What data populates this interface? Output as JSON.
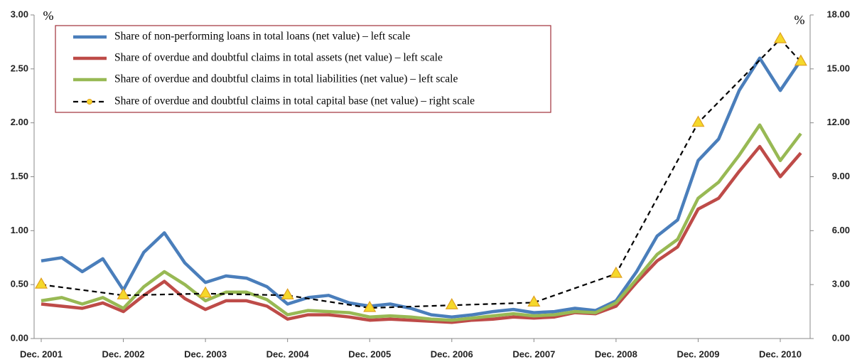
{
  "chart_data": {
    "type": "line",
    "y_label": "%",
    "y2_label": "%",
    "categories": [
      "Dec. 2001",
      null,
      null,
      null,
      "Dec. 2002",
      null,
      null,
      null,
      "Dec. 2003",
      null,
      null,
      null,
      "Dec. 2004",
      null,
      null,
      null,
      "Dec. 2005",
      null,
      null,
      null,
      "Dec. 2006",
      null,
      null,
      null,
      "Dec. 2007",
      null,
      null,
      null,
      "Dec. 2008",
      null,
      null,
      null,
      "Dec. 2009",
      null,
      null,
      null,
      "Dec. 2010",
      null
    ],
    "ylim": [
      0,
      3
    ],
    "yticks": [
      {
        "value": 0,
        "label": "0.00"
      },
      {
        "value": 0.5,
        "label": "0.50"
      },
      {
        "value": 1,
        "label": "1.00"
      },
      {
        "value": 1.5,
        "label": "1.50"
      },
      {
        "value": 2,
        "label": "2.00"
      },
      {
        "value": 2.5,
        "label": "2.50"
      },
      {
        "value": 3,
        "label": "3.00"
      }
    ],
    "y2lim": [
      0,
      18
    ],
    "y2ticks": [
      {
        "value": 0,
        "label": "0.00"
      },
      {
        "value": 3,
        "label": "3.00"
      },
      {
        "value": 6,
        "label": "6.00"
      },
      {
        "value": 9,
        "label": "9.00"
      },
      {
        "value": 12,
        "label": "12.00"
      },
      {
        "value": 15,
        "label": "15.00"
      },
      {
        "value": 18,
        "label": "18.00"
      }
    ],
    "series": [
      {
        "name": "Share of non-performing loans in total loans (net value) – left scale",
        "color": "#4a7ebb",
        "values": [
          0.72,
          0.75,
          0.62,
          0.74,
          0.45,
          0.8,
          0.98,
          0.7,
          0.52,
          0.58,
          0.56,
          0.48,
          0.32,
          0.38,
          0.4,
          0.33,
          0.3,
          0.32,
          0.28,
          0.22,
          0.2,
          0.22,
          0.25,
          0.27,
          0.24,
          0.25,
          0.28,
          0.26,
          0.35,
          0.62,
          0.95,
          1.1,
          1.65,
          1.85,
          2.3,
          2.6,
          2.3,
          2.58
        ]
      },
      {
        "name": "Share of overdue and doubtful claims in total assets (net value) – left scale",
        "color": "#be4b48",
        "values": [
          0.32,
          0.3,
          0.28,
          0.33,
          0.25,
          0.4,
          0.53,
          0.37,
          0.27,
          0.35,
          0.35,
          0.3,
          0.18,
          0.22,
          0.22,
          0.2,
          0.17,
          0.18,
          0.17,
          0.16,
          0.15,
          0.17,
          0.18,
          0.2,
          0.19,
          0.2,
          0.24,
          0.23,
          0.3,
          0.52,
          0.72,
          0.85,
          1.2,
          1.3,
          1.55,
          1.78,
          1.5,
          1.72
        ]
      },
      {
        "name": "Share of overdue and doubtful claims in total liabilities (net value) – left scale",
        "color": "#98b954",
        "values": [
          0.35,
          0.38,
          0.32,
          0.38,
          0.28,
          0.48,
          0.62,
          0.5,
          0.35,
          0.43,
          0.43,
          0.36,
          0.22,
          0.26,
          0.25,
          0.24,
          0.2,
          0.21,
          0.2,
          0.18,
          0.17,
          0.19,
          0.21,
          0.23,
          0.21,
          0.22,
          0.25,
          0.24,
          0.33,
          0.55,
          0.78,
          0.92,
          1.3,
          1.45,
          1.7,
          1.98,
          1.65,
          1.9
        ]
      },
      {
        "name": "Share of overdue and doubtful claims in total capital base (net value) – right scale",
        "color": "#000000",
        "axis": "y2",
        "dashed": true,
        "span_gaps": true,
        "marker_color": "#f5d82a",
        "values": [
          3.0,
          null,
          null,
          null,
          2.4,
          null,
          null,
          null,
          2.5,
          null,
          null,
          null,
          2.4,
          null,
          null,
          null,
          1.7,
          null,
          null,
          null,
          1.85,
          null,
          null,
          null,
          2.0,
          null,
          null,
          null,
          3.6,
          null,
          null,
          null,
          12.0,
          null,
          null,
          null,
          16.65,
          15.4
        ]
      }
    ]
  }
}
